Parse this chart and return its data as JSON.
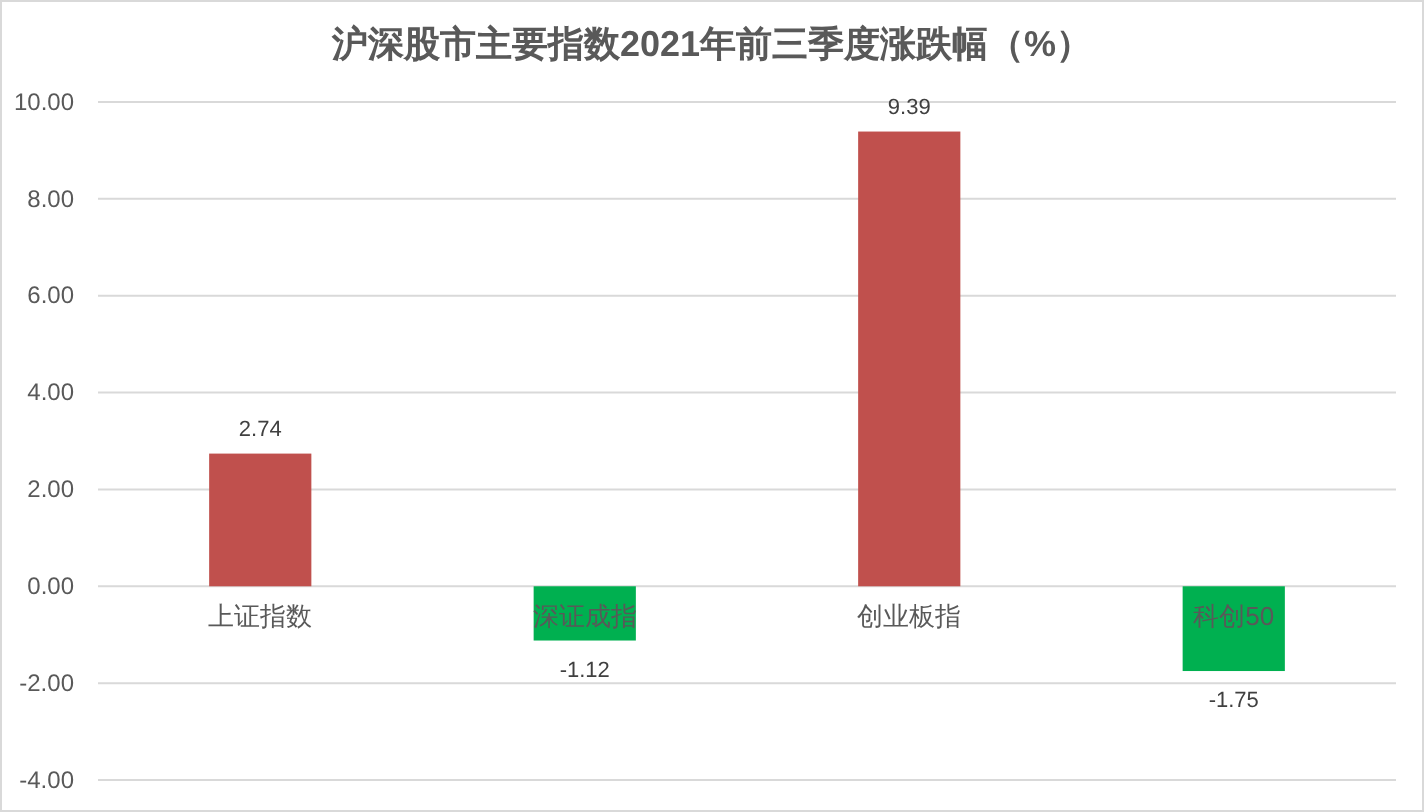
{
  "chart_data": {
    "type": "bar",
    "title": "沪深股市主要指数2021年前三季度涨跌幅（%）",
    "categories": [
      "上证指数",
      "深证成指",
      "创业板指",
      "科创50"
    ],
    "values": [
      2.74,
      -1.12,
      9.39,
      -1.75
    ],
    "colors": [
      "#c0504d",
      "#00b050",
      "#c0504d",
      "#00b050"
    ],
    "ylim": [
      -4,
      10
    ],
    "yticks": [
      {
        "value": -4,
        "label": "-4.00"
      },
      {
        "value": -2,
        "label": "-2.00"
      },
      {
        "value": 0,
        "label": "0.00"
      },
      {
        "value": 2,
        "label": "2.00"
      },
      {
        "value": 4,
        "label": "4.00"
      },
      {
        "value": 6,
        "label": "6.00"
      },
      {
        "value": 8,
        "label": "8.00"
      },
      {
        "value": 10,
        "label": "10.00"
      }
    ],
    "grid": "y",
    "data_labels": true
  }
}
